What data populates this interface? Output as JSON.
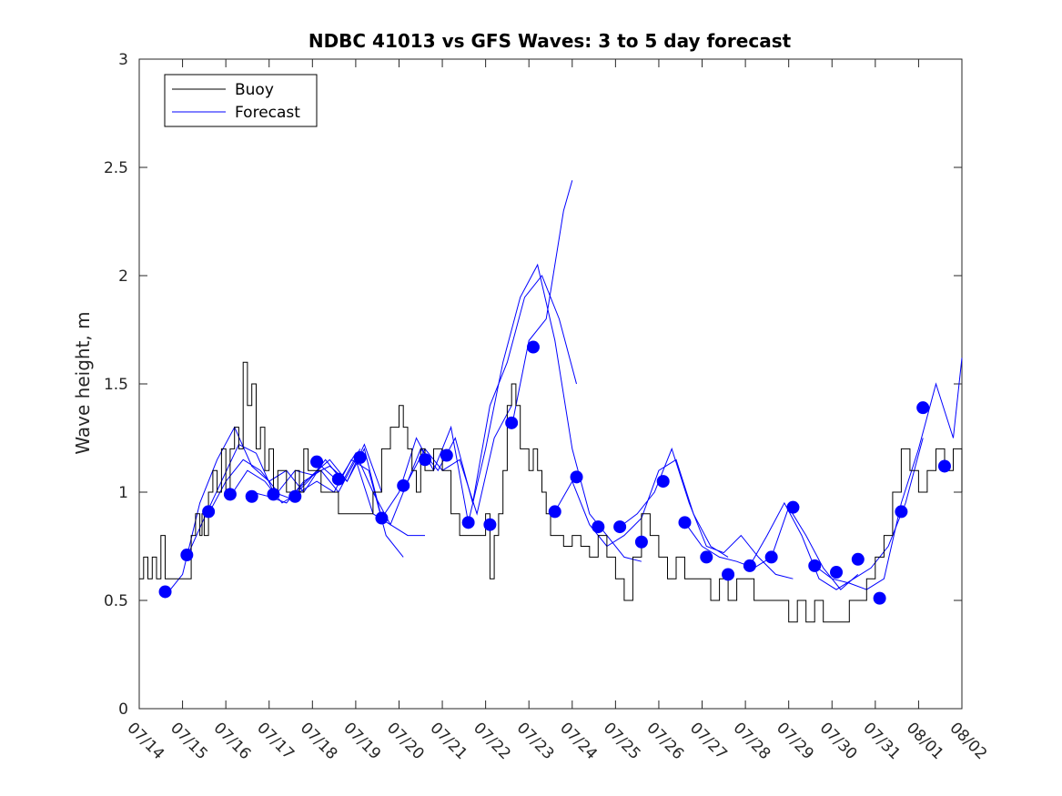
{
  "chart_data": {
    "type": "line",
    "title": "NDBC 41013 vs GFS Waves: 3 to 5 day forecast",
    "xlabel": "",
    "ylabel": "Wave height, m",
    "xlim": [
      0,
      19
    ],
    "ylim": [
      0,
      3
    ],
    "x_tick_labels": [
      "07/14",
      "07/15",
      "07/16",
      "07/17",
      "07/18",
      "07/19",
      "07/20",
      "07/21",
      "07/22",
      "07/23",
      "07/24",
      "07/25",
      "07/26",
      "07/27",
      "07/28",
      "07/29",
      "07/30",
      "07/31",
      "08/01",
      "08/02"
    ],
    "y_ticks": [
      0,
      0.5,
      1,
      1.5,
      2,
      2.5,
      3
    ],
    "y_tick_labels": [
      "0",
      "0.5",
      "1",
      "1.5",
      "2",
      "2.5",
      "3"
    ],
    "legend": {
      "position": "top-left",
      "entries": [
        {
          "label": "Buoy",
          "color": "#000000"
        },
        {
          "label": "Forecast",
          "color": "#0000ff"
        }
      ]
    },
    "colors": {
      "buoy": "#000000",
      "forecast": "#0000ff"
    },
    "series": [
      {
        "name": "Buoy",
        "style": "step",
        "x": [
          0.0,
          0.1,
          0.2,
          0.3,
          0.4,
          0.5,
          0.6,
          0.8,
          1.0,
          1.2,
          1.3,
          1.4,
          1.45,
          1.5,
          1.6,
          1.7,
          1.8,
          1.9,
          2.0,
          2.1,
          2.2,
          2.3,
          2.4,
          2.5,
          2.6,
          2.7,
          2.8,
          2.9,
          3.0,
          3.1,
          3.2,
          3.3,
          3.4,
          3.5,
          3.6,
          3.7,
          3.8,
          3.9,
          4.0,
          4.2,
          4.4,
          4.6,
          4.8,
          5.0,
          5.2,
          5.4,
          5.6,
          5.8,
          6.0,
          6.1,
          6.2,
          6.3,
          6.4,
          6.5,
          6.6,
          6.8,
          7.0,
          7.2,
          7.4,
          7.6,
          7.8,
          8.0,
          8.1,
          8.2,
          8.3,
          8.4,
          8.5,
          8.6,
          8.7,
          8.8,
          8.9,
          9.0,
          9.1,
          9.2,
          9.3,
          9.4,
          9.5,
          9.6,
          9.8,
          10.0,
          10.2,
          10.4,
          10.6,
          10.8,
          11.0,
          11.2,
          11.4,
          11.6,
          11.8,
          12.0,
          12.2,
          12.4,
          12.6,
          12.8,
          13.0,
          13.2,
          13.4,
          13.6,
          13.8,
          14.0,
          14.2,
          14.4,
          14.6,
          14.8,
          15.0,
          15.2,
          15.4,
          15.6,
          15.8,
          16.0,
          16.2,
          16.4,
          16.6,
          16.8,
          17.0,
          17.2,
          17.4,
          17.6,
          17.8,
          18.0,
          18.2,
          18.4,
          18.6,
          18.8,
          19.0
        ],
        "values": [
          0.6,
          0.7,
          0.6,
          0.7,
          0.6,
          0.8,
          0.6,
          0.6,
          0.6,
          0.8,
          0.9,
          0.8,
          0.9,
          0.8,
          1.0,
          1.1,
          1.0,
          1.2,
          1.0,
          1.2,
          1.3,
          1.2,
          1.6,
          1.4,
          1.5,
          1.2,
          1.3,
          1.1,
          1.2,
          1.0,
          1.1,
          1.1,
          1.0,
          1.0,
          1.1,
          1.0,
          1.2,
          1.1,
          1.1,
          1.0,
          1.0,
          0.9,
          0.9,
          0.9,
          0.9,
          1.0,
          1.2,
          1.3,
          1.4,
          1.3,
          1.2,
          1.1,
          1.0,
          1.2,
          1.1,
          1.2,
          1.1,
          0.9,
          0.8,
          0.8,
          0.8,
          0.9,
          0.6,
          0.8,
          0.9,
          1.1,
          1.4,
          1.5,
          1.4,
          1.2,
          1.2,
          1.1,
          1.2,
          1.1,
          1.0,
          0.9,
          0.8,
          0.8,
          0.75,
          0.8,
          0.75,
          0.7,
          0.8,
          0.7,
          0.6,
          0.5,
          0.7,
          0.9,
          0.8,
          0.7,
          0.6,
          0.7,
          0.6,
          0.6,
          0.6,
          0.5,
          0.6,
          0.5,
          0.6,
          0.6,
          0.5,
          0.5,
          0.5,
          0.5,
          0.4,
          0.5,
          0.4,
          0.5,
          0.4,
          0.4,
          0.4,
          0.5,
          0.5,
          0.6,
          0.7,
          0.8,
          1.0,
          1.2,
          1.1,
          1.0,
          1.1,
          1.2,
          1.1,
          1.2,
          1.0
        ]
      },
      {
        "name": "Forecast",
        "style": "markers",
        "x": [
          0.6,
          1.1,
          1.6,
          2.1,
          2.6,
          3.1,
          3.6,
          4.1,
          4.6,
          5.1,
          5.6,
          6.1,
          6.6,
          7.1,
          7.6,
          8.1,
          8.6,
          9.1,
          9.6,
          10.1,
          10.6,
          11.1,
          11.6,
          12.1,
          12.6,
          13.1,
          13.6,
          14.1,
          14.6,
          15.1,
          15.6,
          16.1,
          16.6,
          17.1,
          17.6,
          18.1,
          18.6
        ],
        "values": [
          0.54,
          0.71,
          0.91,
          0.99,
          0.98,
          0.99,
          0.98,
          1.14,
          1.06,
          1.16,
          0.88,
          1.03,
          1.15,
          1.17,
          0.86,
          0.85,
          1.32,
          1.67,
          0.91,
          1.07,
          0.84,
          0.84,
          0.77,
          1.05,
          0.86,
          0.7,
          0.62,
          0.66,
          0.7,
          0.93,
          0.66,
          0.63,
          0.69,
          0.51,
          0.91,
          1.39,
          1.12
        ]
      }
    ],
    "forecast_traces": [
      {
        "x": [
          0.6,
          1.0,
          1.4,
          1.8,
          2.2,
          2.6,
          3.0,
          3.4,
          3.8,
          4.2,
          4.6
        ],
        "values": [
          0.52,
          0.62,
          0.95,
          1.15,
          1.3,
          1.12,
          1.05,
          1.1,
          1.0,
          1.12,
          1.05
        ]
      },
      {
        "x": [
          1.1,
          1.5,
          1.9,
          2.3,
          2.7,
          3.1,
          3.5,
          3.9,
          4.3,
          4.7,
          5.1
        ],
        "values": [
          0.7,
          0.88,
          1.05,
          1.22,
          1.18,
          1.0,
          0.97,
          1.05,
          1.15,
          1.05,
          1.2
        ]
      },
      {
        "x": [
          1.6,
          2.0,
          2.4,
          2.8,
          3.2,
          3.6,
          4.0,
          4.4,
          4.8,
          5.2,
          5.6
        ],
        "values": [
          0.9,
          1.05,
          1.15,
          1.1,
          1.0,
          1.1,
          1.08,
          1.12,
          1.05,
          1.22,
          1.0
        ]
      },
      {
        "x": [
          2.1,
          2.5,
          2.9,
          3.3,
          3.7,
          4.1,
          4.5,
          4.9,
          5.3,
          5.7,
          6.1
        ],
        "values": [
          0.98,
          1.1,
          1.05,
          0.95,
          1.0,
          1.05,
          1.0,
          1.15,
          1.1,
          0.8,
          0.7
        ]
      },
      {
        "x": [
          2.6,
          3.0,
          3.4,
          3.8,
          4.2,
          4.6,
          5.0,
          5.4,
          5.8,
          6.2,
          6.6
        ],
        "values": [
          1.0,
          0.98,
          0.95,
          1.05,
          1.1,
          1.0,
          1.15,
          0.9,
          0.85,
          0.8,
          0.8
        ]
      },
      {
        "x": [
          3.6,
          4.0,
          4.4,
          4.8,
          5.2,
          5.6,
          6.0,
          6.4,
          6.8,
          7.2,
          7.6
        ],
        "values": [
          1.0,
          1.08,
          1.15,
          1.05,
          1.2,
          0.88,
          1.0,
          1.25,
          1.1,
          1.3,
          0.86
        ]
      },
      {
        "x": [
          4.6,
          5.0,
          5.4,
          5.8,
          6.2,
          6.6,
          7.0,
          7.4,
          7.8,
          8.2,
          8.6
        ],
        "values": [
          1.05,
          1.18,
          1.0,
          0.85,
          1.05,
          1.2,
          1.1,
          1.15,
          0.9,
          1.25,
          1.4
        ]
      },
      {
        "x": [
          6.1,
          6.5,
          6.9,
          7.3,
          7.7,
          8.1,
          8.5,
          8.9,
          9.3,
          9.7,
          10.1
        ],
        "values": [
          1.0,
          1.2,
          1.1,
          1.25,
          0.95,
          1.4,
          1.6,
          1.9,
          2.0,
          1.8,
          1.5
        ]
      },
      {
        "x": [
          7.6,
          8.0,
          8.4,
          8.8,
          9.2,
          9.6,
          10.0,
          10.4,
          10.8,
          11.2,
          11.6
        ],
        "values": [
          0.86,
          1.2,
          1.6,
          1.9,
          2.05,
          1.7,
          1.2,
          0.9,
          0.8,
          0.7,
          0.68
        ]
      },
      {
        "x": [
          8.6,
          9.0,
          9.4,
          9.8,
          10.0
        ],
        "values": [
          1.3,
          1.7,
          1.8,
          2.3,
          2.44
        ]
      },
      {
        "x": [
          9.6,
          10.0,
          10.4,
          10.8,
          11.2,
          11.6,
          12.0,
          12.4,
          12.8,
          13.2,
          13.6
        ],
        "values": [
          0.91,
          1.05,
          0.85,
          0.75,
          0.8,
          0.88,
          1.1,
          1.15,
          0.9,
          0.75,
          0.7
        ]
      },
      {
        "x": [
          11.1,
          11.5,
          11.9,
          12.3,
          12.7,
          13.1,
          13.5,
          13.9,
          14.3,
          14.7,
          15.1
        ],
        "values": [
          0.84,
          0.9,
          1.0,
          1.2,
          0.95,
          0.75,
          0.72,
          0.8,
          0.7,
          0.62,
          0.6
        ]
      },
      {
        "x": [
          12.6,
          13.0,
          13.4,
          13.8,
          14.2,
          14.6,
          15.0,
          15.4,
          15.8,
          16.2,
          16.6
        ],
        "values": [
          0.86,
          0.75,
          0.7,
          0.68,
          0.65,
          0.7,
          0.93,
          0.8,
          0.65,
          0.55,
          0.62
        ]
      },
      {
        "x": [
          14.1,
          14.5,
          14.9,
          15.3,
          15.7,
          16.1,
          16.5,
          16.9,
          17.3,
          17.7,
          18.1
        ],
        "values": [
          0.66,
          0.8,
          0.95,
          0.8,
          0.6,
          0.55,
          0.6,
          0.65,
          0.75,
          0.95,
          1.25
        ]
      },
      {
        "x": [
          15.6,
          16.0,
          16.4,
          16.8,
          17.2,
          17.6,
          18.0,
          18.4,
          18.8,
          19.0
        ],
        "values": [
          0.66,
          0.6,
          0.58,
          0.55,
          0.6,
          0.95,
          1.2,
          1.5,
          1.25,
          1.62
        ]
      }
    ]
  }
}
